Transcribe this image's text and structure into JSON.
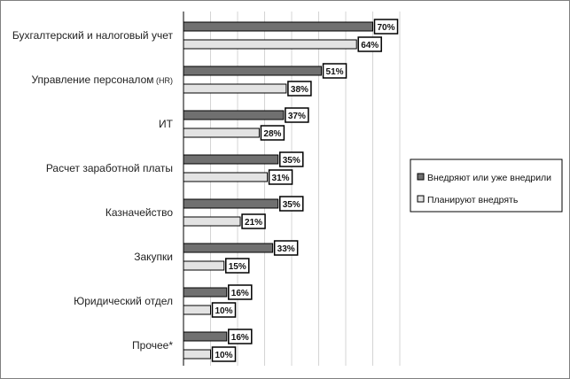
{
  "chart_data": {
    "type": "bar",
    "orientation": "horizontal",
    "categories": [
      {
        "main": "Бухгалтерский и налоговый учет",
        "suffix": ""
      },
      {
        "main": "Управление персоналом",
        "suffix": " (HR)"
      },
      {
        "main": "ИТ",
        "suffix": ""
      },
      {
        "main": "Расчет заработной платы",
        "suffix": ""
      },
      {
        "main": "Казначейство",
        "suffix": ""
      },
      {
        "main": "Закупки",
        "suffix": ""
      },
      {
        "main": "Юридический отдел",
        "suffix": ""
      },
      {
        "main": "Прочее*",
        "suffix": ""
      }
    ],
    "series": [
      {
        "name": "Внедряют или уже внедрили",
        "color": "#707070",
        "values": [
          70,
          51,
          37,
          35,
          35,
          33,
          16,
          16
        ],
        "labels": [
          "70%",
          "51%",
          "37%",
          "35%",
          "35%",
          "33%",
          "16%",
          "16%"
        ]
      },
      {
        "name": "Планируют внедрять",
        "color": "#e3e3e3",
        "values": [
          64,
          38,
          28,
          31,
          21,
          15,
          10,
          10
        ],
        "labels": [
          "64%",
          "38%",
          "28%",
          "31%",
          "21%",
          "15%",
          "10%",
          "10%"
        ]
      }
    ],
    "xlim": [
      0,
      80
    ],
    "grid": true,
    "axis_labels_shown": false,
    "legend_position": "right",
    "title": "",
    "xlabel": "",
    "ylabel": ""
  }
}
